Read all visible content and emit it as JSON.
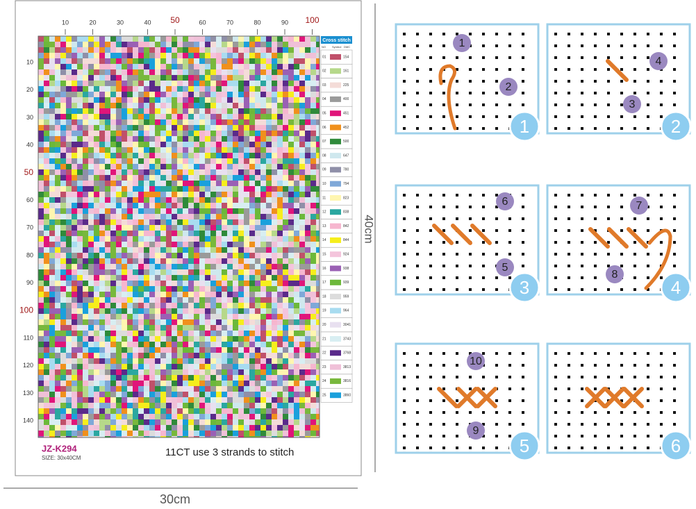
{
  "pattern": {
    "code": "JZ-K294",
    "size": "SIZE: 30x40CM",
    "note": "11CT use 3 strands to stitch",
    "top_ticks": [
      {
        "label": "10"
      },
      {
        "label": "20"
      },
      {
        "label": "30"
      },
      {
        "label": "40"
      },
      {
        "label": "50",
        "accent": true
      },
      {
        "label": "60"
      },
      {
        "label": "70"
      },
      {
        "label": "80"
      },
      {
        "label": "90"
      },
      {
        "label": "100",
        "accent": true
      }
    ],
    "left_ticks": [
      {
        "label": "10"
      },
      {
        "label": "20"
      },
      {
        "label": "30"
      },
      {
        "label": "40"
      },
      {
        "label": "50",
        "accent": true
      },
      {
        "label": "60"
      },
      {
        "label": "70"
      },
      {
        "label": "80"
      },
      {
        "label": "90"
      },
      {
        "label": "100",
        "accent": true
      },
      {
        "label": "110"
      },
      {
        "label": "120"
      },
      {
        "label": "130"
      },
      {
        "label": "140"
      }
    ],
    "legend": {
      "title": "Cross stitch",
      "headers": [
        "NO",
        "Symbol",
        "DMC"
      ],
      "rows": [
        {
          "no": "01",
          "dmc": "154",
          "color": "#c0506a"
        },
        {
          "no": "02",
          "dmc": "161",
          "color": "#b6d88a"
        },
        {
          "no": "03",
          "dmc": "225",
          "color": "#f4dcd8"
        },
        {
          "no": "04",
          "dmc": "400",
          "color": "#9a9a9a"
        },
        {
          "no": "05",
          "dmc": "451",
          "color": "#e0157a"
        },
        {
          "no": "06",
          "dmc": "452",
          "color": "#f0901c"
        },
        {
          "no": "07",
          "dmc": "500",
          "color": "#2f8a3a"
        },
        {
          "no": "08",
          "dmc": "647",
          "color": "#cfe8ee"
        },
        {
          "no": "09",
          "dmc": "780",
          "color": "#8f8fa8"
        },
        {
          "no": "10",
          "dmc": "794",
          "color": "#7fa8d8"
        },
        {
          "no": "11",
          "dmc": "823",
          "color": "#fff6b0"
        },
        {
          "no": "12",
          "dmc": "838",
          "color": "#2aa7a0"
        },
        {
          "no": "13",
          "dmc": "842",
          "color": "#f6b6cf"
        },
        {
          "no": "14",
          "dmc": "844",
          "color": "#f6ee1c"
        },
        {
          "no": "15",
          "dmc": "924",
          "color": "#f4c4dc"
        },
        {
          "no": "16",
          "dmc": "938",
          "color": "#9a60b4"
        },
        {
          "no": "17",
          "dmc": "939",
          "color": "#6cb83a"
        },
        {
          "no": "18",
          "dmc": "959",
          "color": "#dcdcdc"
        },
        {
          "no": "19",
          "dmc": "964",
          "color": "#a8dcf0"
        },
        {
          "no": "20",
          "dmc": "3041",
          "color": "#e8e0f0"
        },
        {
          "no": "21",
          "dmc": "3743",
          "color": "#d8eef2"
        },
        {
          "no": "22",
          "dmc": "3768",
          "color": "#5a2a8a"
        },
        {
          "no": "23",
          "dmc": "3813",
          "color": "#f0c0d8"
        },
        {
          "no": "24",
          "dmc": "3816",
          "color": "#78b83c"
        },
        {
          "no": "25",
          "dmc": "3860",
          "color": "#1aa0dc"
        }
      ]
    }
  },
  "dimensions": {
    "width": "30cm",
    "height": "40cm"
  },
  "steps": [
    {
      "number": "1",
      "markers": [
        "1",
        "2"
      ]
    },
    {
      "number": "2",
      "markers": [
        "4",
        "3"
      ]
    },
    {
      "number": "3",
      "markers": [
        "6",
        "5"
      ]
    },
    {
      "number": "4",
      "markers": [
        "7",
        "8"
      ]
    },
    {
      "number": "5",
      "markers": [
        "10",
        "9"
      ]
    },
    {
      "number": "6",
      "markers": []
    }
  ]
}
